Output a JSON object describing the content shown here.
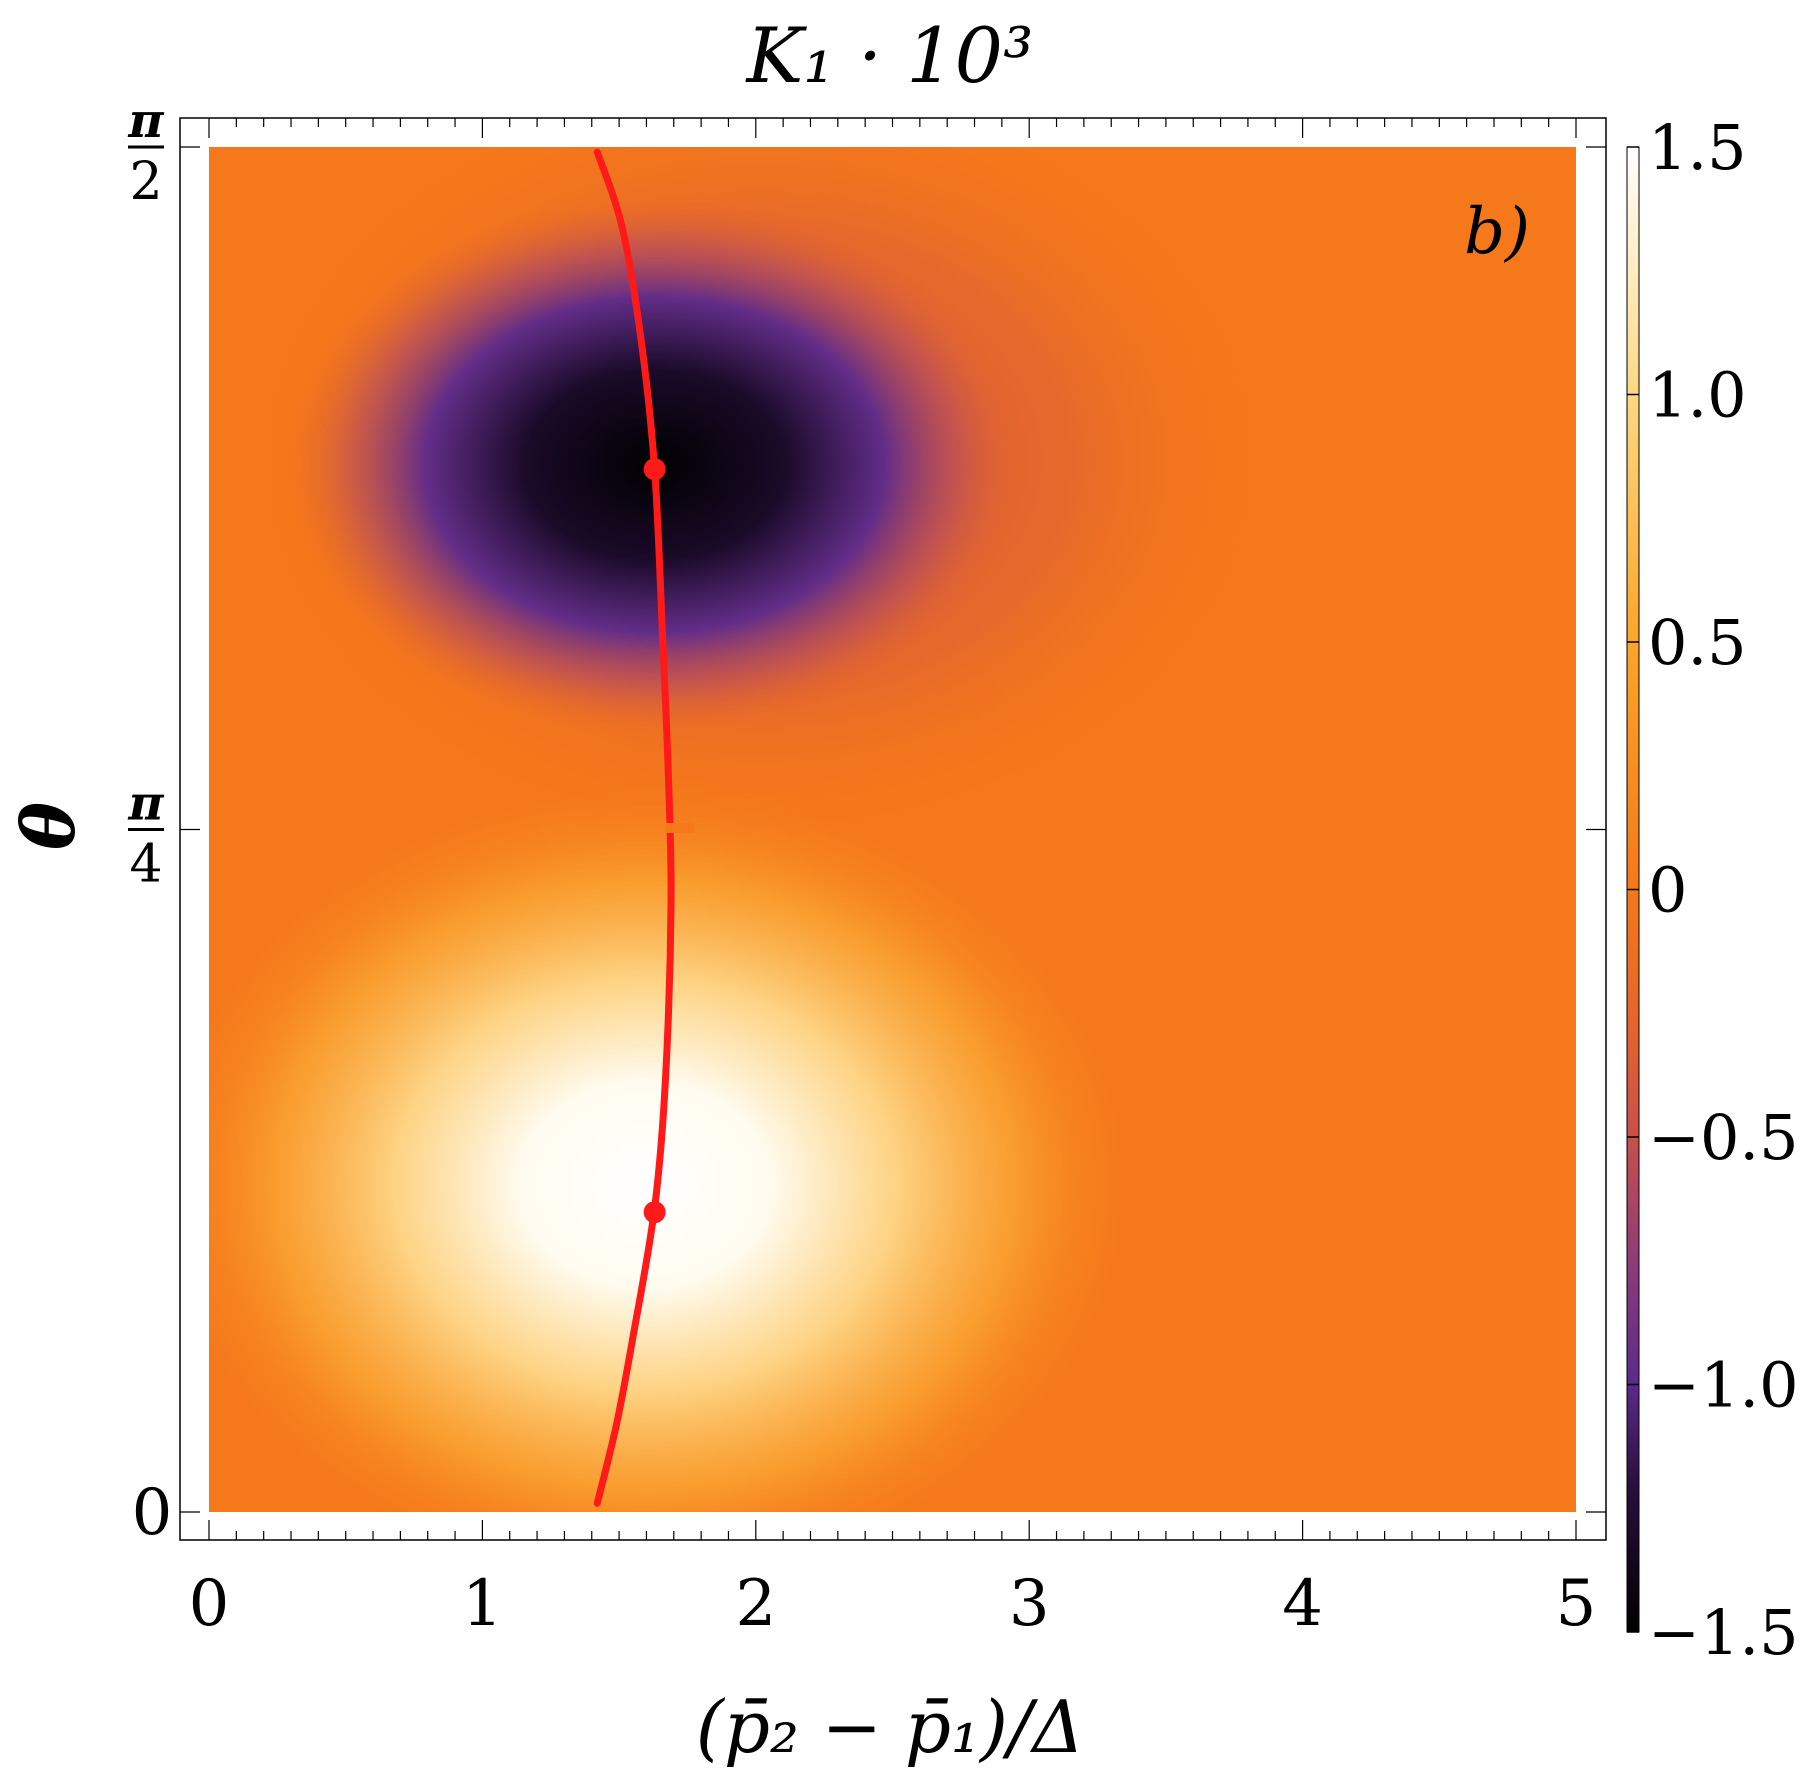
{
  "chart_data": {
    "type": "heatmap",
    "title": "K₁ · 10³",
    "xlabel": "(p̄₂ − p̄₁)/Δ",
    "ylabel": "θ",
    "panel_label": "b)",
    "xlim": [
      0,
      5
    ],
    "ylim": [
      0,
      1.5708
    ],
    "x_ticks": [
      {
        "value": 0,
        "label": "0"
      },
      {
        "value": 1,
        "label": "1"
      },
      {
        "value": 2,
        "label": "2"
      },
      {
        "value": 3,
        "label": "3"
      },
      {
        "value": 4,
        "label": "4"
      },
      {
        "value": 5,
        "label": "5"
      }
    ],
    "y_ticks": [
      {
        "value": 0,
        "label": "0",
        "numerator": "",
        "denominator": ""
      },
      {
        "value": 0.7854,
        "label": "π/4",
        "numerator": "π",
        "denominator": "4"
      },
      {
        "value": 1.5708,
        "label": "π/2",
        "numerator": "π",
        "denominator": "2"
      }
    ],
    "colorbar": {
      "min": -1.5,
      "max": 1.5,
      "ticks": [
        {
          "value": 1.5,
          "label": "1.5"
        },
        {
          "value": 1.0,
          "label": "1.0"
        },
        {
          "value": 0.5,
          "label": "0.5"
        },
        {
          "value": 0,
          "label": "0"
        },
        {
          "value": -0.5,
          "label": "−0.5"
        },
        {
          "value": -1.0,
          "label": "−1.0"
        },
        {
          "value": -1.5,
          "label": "−1.5"
        }
      ],
      "colormap": [
        {
          "value": -1.5,
          "color": "#000000"
        },
        {
          "value": -1.2,
          "color": "#2a0f3e"
        },
        {
          "value": -1.0,
          "color": "#5b2a8c"
        },
        {
          "value": -0.75,
          "color": "#8e3c78"
        },
        {
          "value": -0.5,
          "color": "#c94f4c"
        },
        {
          "value": -0.25,
          "color": "#e8662a"
        },
        {
          "value": 0,
          "color": "#f5781a"
        },
        {
          "value": 0.5,
          "color": "#fba52a"
        },
        {
          "value": 1.0,
          "color": "#fdd882"
        },
        {
          "value": 1.5,
          "color": "#ffffff"
        }
      ]
    },
    "extrema": [
      {
        "type": "min",
        "x": 1.6,
        "y": 1.1,
        "value": -1.5
      },
      {
        "type": "max",
        "x": 1.6,
        "y": 0.27,
        "value": 1.5
      }
    ],
    "curve": {
      "color": "#ff1a1a",
      "points": [
        {
          "x": 1.42,
          "y": 0.01
        },
        {
          "x": 1.49,
          "y": 0.1
        },
        {
          "x": 1.55,
          "y": 0.2
        },
        {
          "x": 1.63,
          "y": 0.35
        },
        {
          "x": 1.67,
          "y": 0.5
        },
        {
          "x": 1.69,
          "y": 0.7
        },
        {
          "x": 1.68,
          "y": 0.85
        },
        {
          "x": 1.66,
          "y": 1.0
        },
        {
          "x": 1.63,
          "y": 1.2
        },
        {
          "x": 1.58,
          "y": 1.35
        },
        {
          "x": 1.51,
          "y": 1.48
        },
        {
          "x": 1.42,
          "y": 1.565
        }
      ],
      "markers": [
        {
          "x": 1.63,
          "y": 1.2
        },
        {
          "x": 1.63,
          "y": 0.345
        }
      ]
    }
  }
}
